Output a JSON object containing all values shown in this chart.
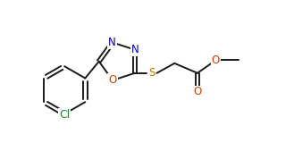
{
  "bg_color": "#ffffff",
  "bond_color": "#1a1a1a",
  "atom_colors": {
    "N": "#0000bb",
    "O": "#cc4400",
    "S": "#bb7700",
    "Cl": "#228822",
    "C": "#1a1a1a"
  },
  "font_size_atom": 8.5,
  "line_width": 1.4,
  "fig_width": 3.29,
  "fig_height": 1.88,
  "dpi": 100
}
